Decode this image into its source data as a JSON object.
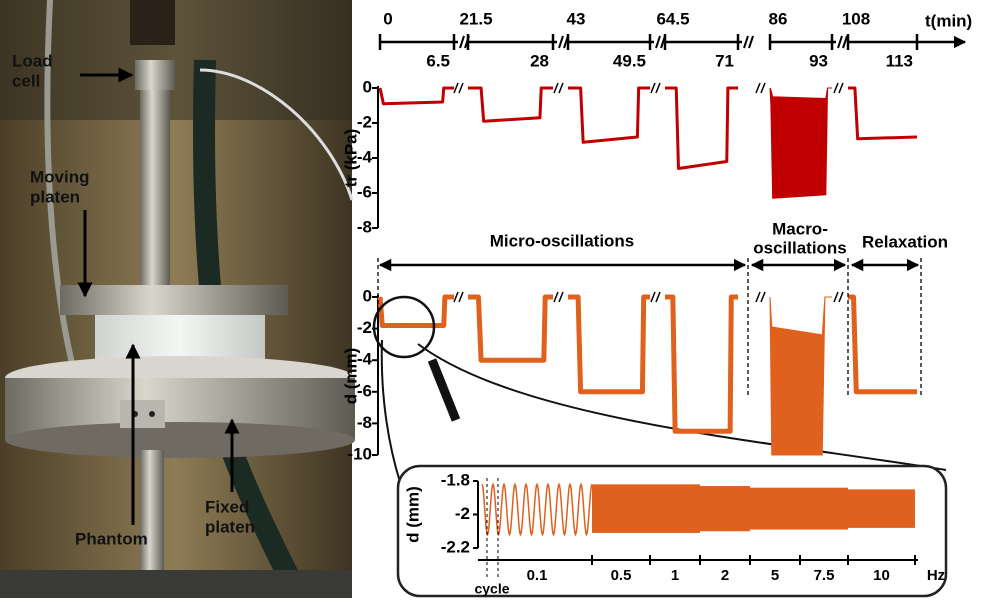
{
  "photo": {
    "labels": [
      [
        "Load",
        "cell"
      ],
      [
        "Moving",
        "platen"
      ],
      [
        "Phantom"
      ],
      [
        "Fixed",
        "platen"
      ]
    ]
  },
  "chart_data": [
    {
      "type": "line",
      "ylabel": "tr (kPa)",
      "xlabel": "t(min)",
      "color": "#c00000",
      "xticks": [
        0,
        6.5,
        21.5,
        28,
        43,
        49.5,
        64.5,
        71,
        86,
        93,
        108,
        113
      ],
      "ylim": [
        -8,
        0
      ],
      "yticks": [
        0,
        -2,
        -4,
        -6,
        -8
      ],
      "x": [
        0,
        0.3,
        5.5,
        5.6,
        6.5,
        null,
        21.5,
        22.5,
        22.7,
        27,
        27.1,
        28,
        null,
        43,
        44,
        44.2,
        48.5,
        48.6,
        49.5,
        null,
        64.5,
        65.5,
        65.7,
        70,
        70.1,
        71,
        null,
        108,
        108.5,
        108.7,
        113
      ],
      "values": [
        0,
        -0.9,
        -0.8,
        0,
        0,
        null,
        0,
        0,
        -1.9,
        -1.7,
        0,
        0,
        null,
        0,
        0,
        -3.1,
        -2.8,
        0,
        0,
        null,
        0,
        0,
        -4.6,
        -4.2,
        0,
        0,
        null,
        0,
        0,
        -2.9,
        -2.8
      ],
      "oscillation": {
        "x": [
          86,
          86.1,
          86.3,
          92.3,
          92.5,
          93
        ],
        "upper": [
          0,
          -0.1,
          -0.5,
          -0.6,
          0,
          0
        ],
        "lower": [
          0,
          -1,
          -6.3,
          -6.1,
          0,
          0
        ]
      }
    },
    {
      "type": "line",
      "ylabel": "d (mm)",
      "color": "#e0601e",
      "ylim": [
        -10,
        0
      ],
      "yticks": [
        0,
        -2,
        -4,
        -6,
        -8,
        -10
      ],
      "x": [
        0,
        0.2,
        5.6,
        5.7,
        6.5,
        null,
        21.5,
        22.3,
        22.5,
        27.3,
        27.4,
        28,
        null,
        43,
        43.8,
        44,
        48.9,
        49,
        49.5,
        null,
        64.5,
        65.2,
        65.4,
        70.3,
        70.4,
        71,
        null,
        108,
        108.4,
        108.6,
        113
      ],
      "values": [
        0,
        -1.8,
        -1.8,
        0,
        0,
        null,
        0,
        0,
        -4,
        -4,
        0,
        0,
        null,
        0,
        0,
        -6,
        -6,
        0,
        0,
        null,
        0,
        0,
        -8.5,
        -8.5,
        0,
        0,
        null,
        0,
        0,
        -6,
        -6
      ],
      "oscillation": {
        "x": [
          86,
          86.2,
          91.9,
          92.2,
          93
        ],
        "upper": [
          0,
          -1.9,
          -2.4,
          0,
          0
        ],
        "lower": [
          0,
          -10,
          -10,
          0,
          0
        ]
      },
      "annotations": [
        "Micro-oscillations",
        "Macro-",
        "oscillations",
        "Relaxation"
      ]
    },
    {
      "type": "band",
      "ylabel": "d (mm)",
      "color": "#e0601e",
      "ylim": [
        -2.2,
        -1.8
      ],
      "yticks": [
        -1.8,
        -2,
        -2.2
      ],
      "categories": [
        "0.1",
        "0.5",
        "1",
        "2",
        "5",
        "7.5",
        "10"
      ],
      "unit": "Hz",
      "upper": [
        -1.82,
        -1.82,
        -1.82,
        -1.83,
        -1.84,
        -1.84,
        -1.85
      ],
      "lower": [
        -2.12,
        -2.11,
        -2.11,
        -2.1,
        -2.09,
        -2.09,
        -2.08
      ],
      "note": "cycle"
    }
  ]
}
